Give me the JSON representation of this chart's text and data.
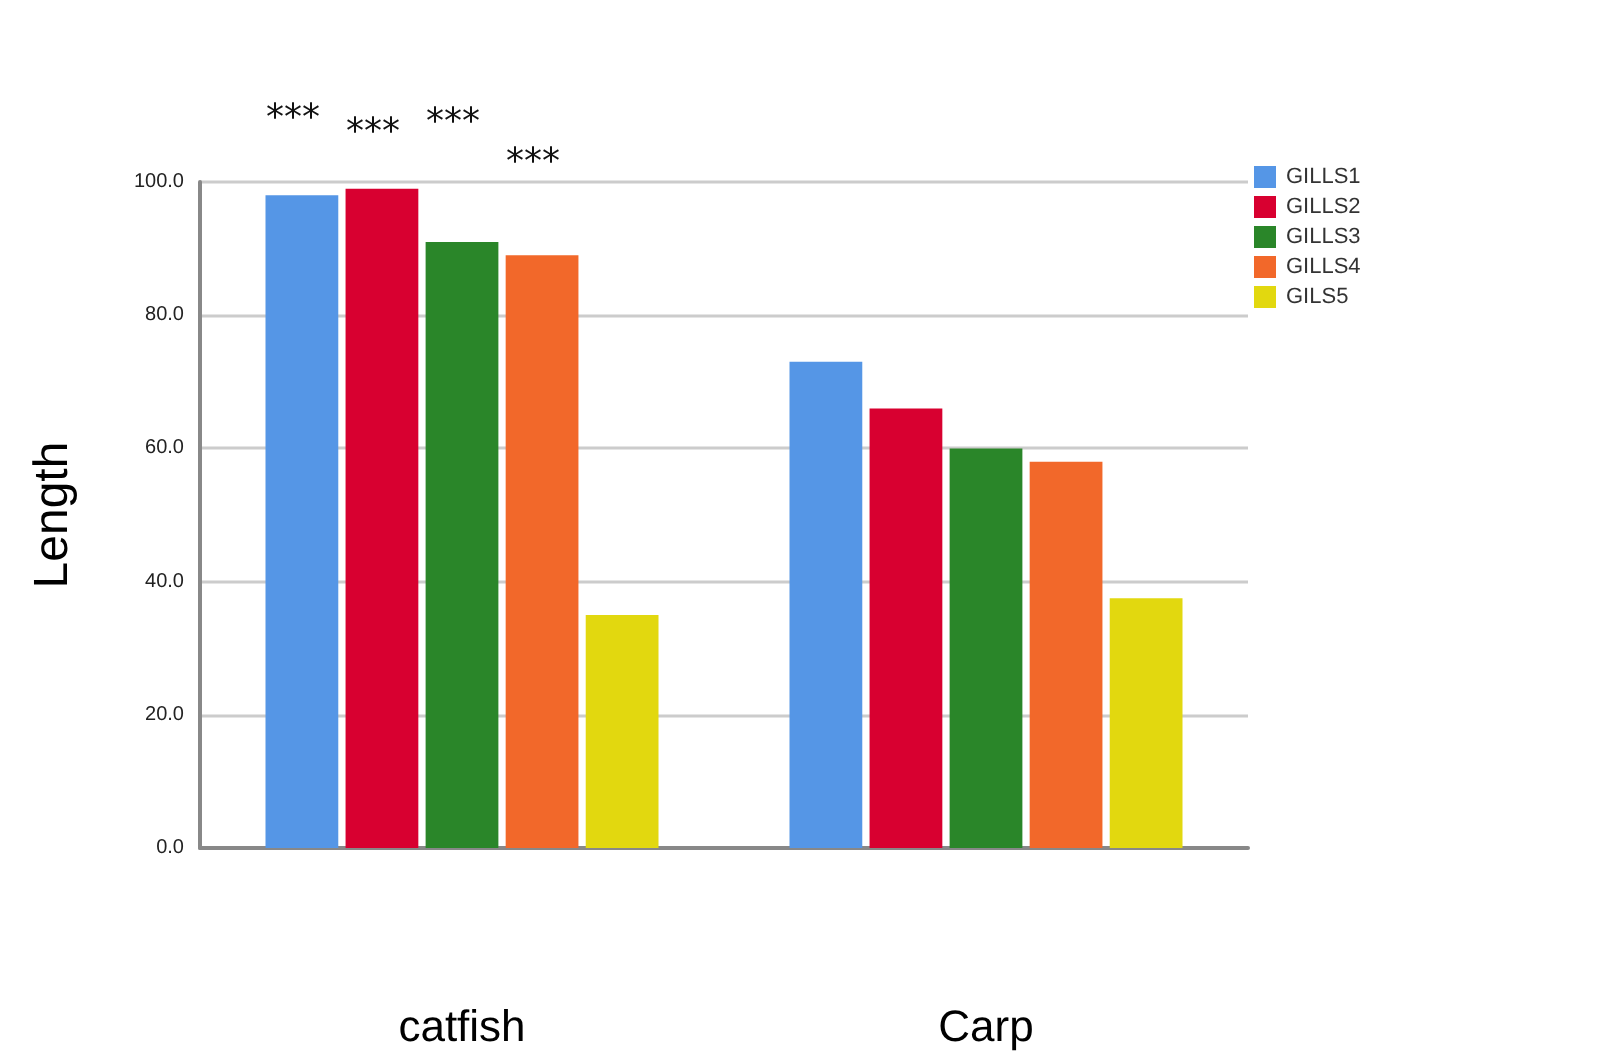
{
  "chart_data": {
    "type": "bar",
    "ylabel": "Length",
    "categories": [
      "catfish",
      "Carp"
    ],
    "series": [
      {
        "name": "GILLS1",
        "color": "#5596e6",
        "values": [
          98,
          73
        ]
      },
      {
        "name": "GILLS2",
        "color": "#d80030",
        "values": [
          99,
          66
        ]
      },
      {
        "name": "GILLS3",
        "color": "#2a8629",
        "values": [
          91,
          60
        ]
      },
      {
        "name": "GILLS4",
        "color": "#f2682a",
        "values": [
          89,
          58
        ]
      },
      {
        "name": "GILS5",
        "color": "#e2d80f",
        "values": [
          35,
          37.5
        ]
      }
    ],
    "ylim": [
      0,
      100
    ],
    "yticks": [
      {
        "value": 0,
        "label": "0.0"
      },
      {
        "value": 20,
        "label": "20.0"
      },
      {
        "value": 40,
        "label": "40.0"
      },
      {
        "value": 60,
        "label": "60.0"
      },
      {
        "value": 80,
        "label": "80.0"
      },
      {
        "value": 100,
        "label": "100.0"
      }
    ],
    "grid": "y",
    "legend": "top right",
    "annotations": [
      "***",
      "***",
      "***",
      "***"
    ]
  }
}
